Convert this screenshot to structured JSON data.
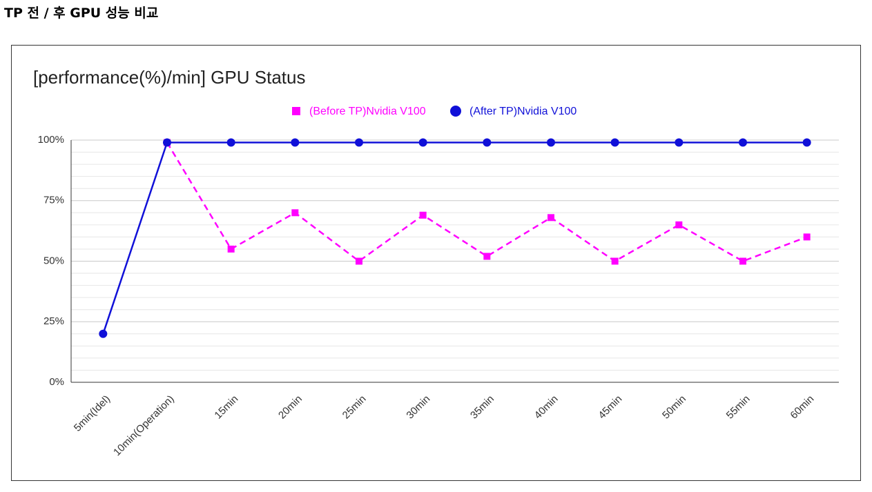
{
  "header": {
    "title": "TP 전 / 후 GPU 성능 비교"
  },
  "chart_data": {
    "type": "line",
    "title": "[performance(%)/min] GPU Status",
    "categories": [
      "5min(Idel)",
      "10min(Operation)",
      "15min",
      "20min",
      "25min",
      "30min",
      "35min",
      "40min",
      "45min",
      "50min",
      "55min",
      "60min"
    ],
    "series": [
      {
        "name": "(Before TP)Nvidia V100",
        "color": "#ff00ff",
        "dashed": true,
        "marker": "square",
        "values": [
          null,
          99,
          55,
          70,
          50,
          69,
          52,
          68,
          50,
          65,
          50,
          60
        ]
      },
      {
        "name": "(After TP)Nvidia V100",
        "color": "#1010d8",
        "dashed": false,
        "marker": "circle",
        "values": [
          20,
          99,
          99,
          99,
          99,
          99,
          99,
          99,
          99,
          99,
          99,
          99
        ]
      }
    ],
    "ylim": [
      0,
      100
    ],
    "yticks": [
      {
        "value": 0,
        "label": "0%"
      },
      {
        "value": 25,
        "label": "25%"
      },
      {
        "value": 50,
        "label": "50%"
      },
      {
        "value": 75,
        "label": "75%"
      },
      {
        "value": 100,
        "label": "100%"
      }
    ],
    "minor_yticks": [
      5,
      10,
      15,
      20,
      30,
      35,
      40,
      45,
      55,
      60,
      65,
      70,
      80,
      85,
      90,
      95
    ],
    "grid": true,
    "legend": "top"
  }
}
